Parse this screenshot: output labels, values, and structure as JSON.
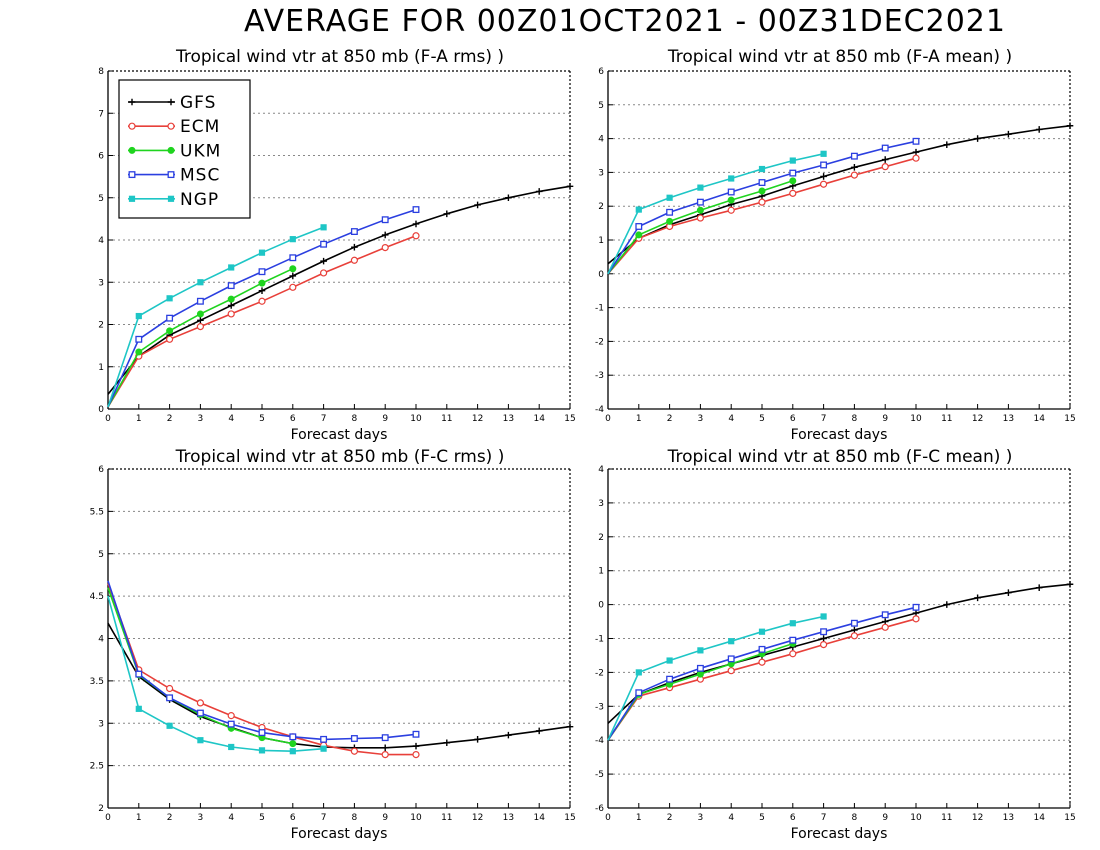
{
  "title": "AVERAGE FOR 00Z01OCT2021 - 00Z31DEC2021",
  "colors": {
    "GFS": "#000000",
    "ECM": "#e8403a",
    "UKM": "#1fd41f",
    "MSC": "#2b3fe0",
    "NGP": "#1ec6c6",
    "grid": "#888888"
  },
  "chart_data": [
    {
      "type": "line",
      "title": "Tropical wind vtr at 850 mb (F-A rms) )",
      "xlabel": "Forecast days",
      "ylabel": "",
      "xlim": [
        0,
        15
      ],
      "ylim": [
        0,
        8
      ],
      "yticks": [
        "0",
        "1",
        "2",
        "3",
        "4",
        "5",
        "6",
        "7",
        "8"
      ],
      "xticks": [
        "0",
        "1",
        "2",
        "3",
        "4",
        "5",
        "6",
        "7",
        "8",
        "9",
        "10",
        "11",
        "12",
        "13",
        "14",
        "15"
      ],
      "legend": "top-left",
      "grid": true,
      "series": [
        {
          "name": "GFS",
          "marker": "plus",
          "x": [
            0,
            1,
            2,
            3,
            4,
            5,
            6,
            7,
            8,
            9,
            10,
            11,
            12,
            13,
            14,
            15
          ],
          "values": [
            0.35,
            1.25,
            1.75,
            2.1,
            2.45,
            2.8,
            3.15,
            3.5,
            3.83,
            4.12,
            4.38,
            4.62,
            4.83,
            5.0,
            5.15,
            5.27
          ]
        },
        {
          "name": "ECM",
          "marker": "circle-open",
          "x": [
            0,
            1,
            2,
            3,
            4,
            5,
            6,
            7,
            8,
            9,
            10
          ],
          "values": [
            0.05,
            1.25,
            1.65,
            1.95,
            2.25,
            2.55,
            2.88,
            3.22,
            3.52,
            3.82,
            4.1
          ]
        },
        {
          "name": "UKM",
          "marker": "circle-filled",
          "x": [
            0,
            1,
            2,
            3,
            4,
            5,
            6
          ],
          "values": [
            0.05,
            1.35,
            1.85,
            2.25,
            2.6,
            2.98,
            3.32
          ]
        },
        {
          "name": "MSC",
          "marker": "square-open",
          "x": [
            0,
            1,
            2,
            3,
            4,
            5,
            6,
            7,
            8,
            9,
            10
          ],
          "values": [
            0.05,
            1.65,
            2.15,
            2.55,
            2.92,
            3.25,
            3.58,
            3.9,
            4.2,
            4.48,
            4.72
          ]
        },
        {
          "name": "NGP",
          "marker": "square-filled",
          "x": [
            0,
            1,
            2,
            3,
            4,
            5,
            6,
            7
          ],
          "values": [
            0.05,
            2.2,
            2.62,
            3.0,
            3.35,
            3.7,
            4.02,
            4.3
          ]
        }
      ]
    },
    {
      "type": "line",
      "title": "Tropical wind vtr at 850 mb (F-A mean) )",
      "xlabel": "Forecast days",
      "ylabel": "",
      "xlim": [
        0,
        15
      ],
      "ylim": [
        -4,
        6
      ],
      "yticks": [
        "-4",
        "-3",
        "-2",
        "-1",
        "0",
        "1",
        "2",
        "3",
        "4",
        "5",
        "6"
      ],
      "xticks": [
        "0",
        "1",
        "2",
        "3",
        "4",
        "5",
        "6",
        "7",
        "8",
        "9",
        "10",
        "11",
        "12",
        "13",
        "14",
        "15"
      ],
      "grid": true,
      "series": [
        {
          "name": "GFS",
          "marker": "plus",
          "x": [
            0,
            1,
            2,
            3,
            4,
            5,
            6,
            7,
            8,
            9,
            10,
            11,
            12,
            13,
            14,
            15
          ],
          "values": [
            0.3,
            1.05,
            1.45,
            1.75,
            2.05,
            2.3,
            2.6,
            2.88,
            3.15,
            3.38,
            3.6,
            3.82,
            4.0,
            4.13,
            4.27,
            4.38
          ]
        },
        {
          "name": "ECM",
          "marker": "circle-open",
          "x": [
            0,
            1,
            2,
            3,
            4,
            5,
            6,
            7,
            8,
            9,
            10
          ],
          "values": [
            0.0,
            1.05,
            1.4,
            1.65,
            1.88,
            2.12,
            2.38,
            2.65,
            2.92,
            3.17,
            3.42
          ]
        },
        {
          "name": "UKM",
          "marker": "circle-filled",
          "x": [
            0,
            1,
            2,
            3,
            4,
            5,
            6
          ],
          "values": [
            0.0,
            1.15,
            1.55,
            1.88,
            2.18,
            2.45,
            2.75
          ]
        },
        {
          "name": "MSC",
          "marker": "square-open",
          "x": [
            0,
            1,
            2,
            3,
            4,
            5,
            6,
            7,
            8,
            9,
            10
          ],
          "values": [
            0.0,
            1.4,
            1.82,
            2.12,
            2.42,
            2.7,
            2.98,
            3.22,
            3.48,
            3.72,
            3.92
          ]
        },
        {
          "name": "NGP",
          "marker": "square-filled",
          "x": [
            0,
            1,
            2,
            3,
            4,
            5,
            6,
            7
          ],
          "values": [
            0.0,
            1.9,
            2.25,
            2.55,
            2.82,
            3.1,
            3.35,
            3.55
          ]
        }
      ]
    },
    {
      "type": "line",
      "title": "Tropical wind vtr at 850 mb (F-C rms) )",
      "xlabel": "Forecast days",
      "ylabel": "",
      "xlim": [
        0,
        15
      ],
      "ylim": [
        2,
        6
      ],
      "yticks": [
        "2",
        "2.5",
        "3",
        "3.5",
        "4",
        "4.5",
        "5",
        "5.5",
        "6"
      ],
      "xticks": [
        "0",
        "1",
        "2",
        "3",
        "4",
        "5",
        "6",
        "7",
        "8",
        "9",
        "10",
        "11",
        "12",
        "13",
        "14",
        "15"
      ],
      "grid": true,
      "series": [
        {
          "name": "GFS",
          "marker": "plus",
          "x": [
            0,
            1,
            2,
            3,
            4,
            5,
            6,
            7,
            8,
            9,
            10,
            11,
            12,
            13,
            14,
            15
          ],
          "values": [
            4.18,
            3.55,
            3.28,
            3.08,
            2.95,
            2.83,
            2.76,
            2.72,
            2.71,
            2.71,
            2.73,
            2.77,
            2.81,
            2.86,
            2.91,
            2.96
          ]
        },
        {
          "name": "ECM",
          "marker": "circle-open",
          "x": [
            0,
            1,
            2,
            3,
            4,
            5,
            6,
            7,
            8,
            9,
            10
          ],
          "values": [
            4.65,
            3.63,
            3.41,
            3.24,
            3.09,
            2.95,
            2.84,
            2.74,
            2.67,
            2.63,
            2.63
          ]
        },
        {
          "name": "UKM",
          "marker": "circle-filled",
          "x": [
            0,
            1,
            2,
            3,
            4,
            5,
            6
          ],
          "values": [
            4.6,
            3.57,
            3.3,
            3.1,
            2.94,
            2.83,
            2.76
          ]
        },
        {
          "name": "MSC",
          "marker": "square-open",
          "x": [
            0,
            1,
            2,
            3,
            4,
            5,
            6,
            7,
            8,
            9,
            10
          ],
          "values": [
            4.68,
            3.58,
            3.3,
            3.12,
            2.99,
            2.89,
            2.84,
            2.81,
            2.82,
            2.83,
            2.87
          ]
        },
        {
          "name": "NGP",
          "marker": "square-filled",
          "x": [
            0,
            1,
            2,
            3,
            4,
            5,
            6,
            7
          ],
          "values": [
            4.5,
            3.17,
            2.97,
            2.8,
            2.72,
            2.68,
            2.67,
            2.7
          ]
        }
      ]
    },
    {
      "type": "line",
      "title": "Tropical wind vtr at 850 mb (F-C mean) )",
      "xlabel": "Forecast days",
      "ylabel": "",
      "xlim": [
        0,
        15
      ],
      "ylim": [
        -6,
        4
      ],
      "yticks": [
        "-6",
        "-5",
        "-4",
        "-3",
        "-2",
        "-1",
        "0",
        "1",
        "2",
        "3",
        "4"
      ],
      "xticks": [
        "0",
        "1",
        "2",
        "3",
        "4",
        "5",
        "6",
        "7",
        "8",
        "9",
        "10",
        "11",
        "12",
        "13",
        "14",
        "15"
      ],
      "grid": true,
      "series": [
        {
          "name": "GFS",
          "marker": "plus",
          "x": [
            0,
            1,
            2,
            3,
            4,
            5,
            6,
            7,
            8,
            9,
            10,
            11,
            12,
            13,
            14,
            15
          ],
          "values": [
            -3.5,
            -2.65,
            -2.3,
            -2.0,
            -1.75,
            -1.5,
            -1.25,
            -1.0,
            -0.75,
            -0.5,
            -0.25,
            0.0,
            0.2,
            0.35,
            0.5,
            0.6
          ]
        },
        {
          "name": "ECM",
          "marker": "circle-open",
          "x": [
            0,
            1,
            2,
            3,
            4,
            5,
            6,
            7,
            8,
            9,
            10
          ],
          "values": [
            -4.0,
            -2.7,
            -2.45,
            -2.2,
            -1.95,
            -1.7,
            -1.45,
            -1.18,
            -0.92,
            -0.67,
            -0.42
          ]
        },
        {
          "name": "UKM",
          "marker": "circle-filled",
          "x": [
            0,
            1,
            2,
            3,
            4,
            5,
            6
          ],
          "values": [
            -4.0,
            -2.65,
            -2.35,
            -2.05,
            -1.75,
            -1.45,
            -1.15
          ]
        },
        {
          "name": "MSC",
          "marker": "square-open",
          "x": [
            0,
            1,
            2,
            3,
            4,
            5,
            6,
            7,
            8,
            9,
            10
          ],
          "values": [
            -4.0,
            -2.6,
            -2.2,
            -1.88,
            -1.6,
            -1.32,
            -1.05,
            -0.8,
            -0.55,
            -0.3,
            -0.08
          ]
        },
        {
          "name": "NGP",
          "marker": "square-filled",
          "x": [
            0,
            1,
            2,
            3,
            4,
            5,
            6,
            7
          ],
          "values": [
            -4.0,
            -2.0,
            -1.65,
            -1.35,
            -1.08,
            -0.8,
            -0.55,
            -0.35
          ]
        }
      ]
    }
  ]
}
